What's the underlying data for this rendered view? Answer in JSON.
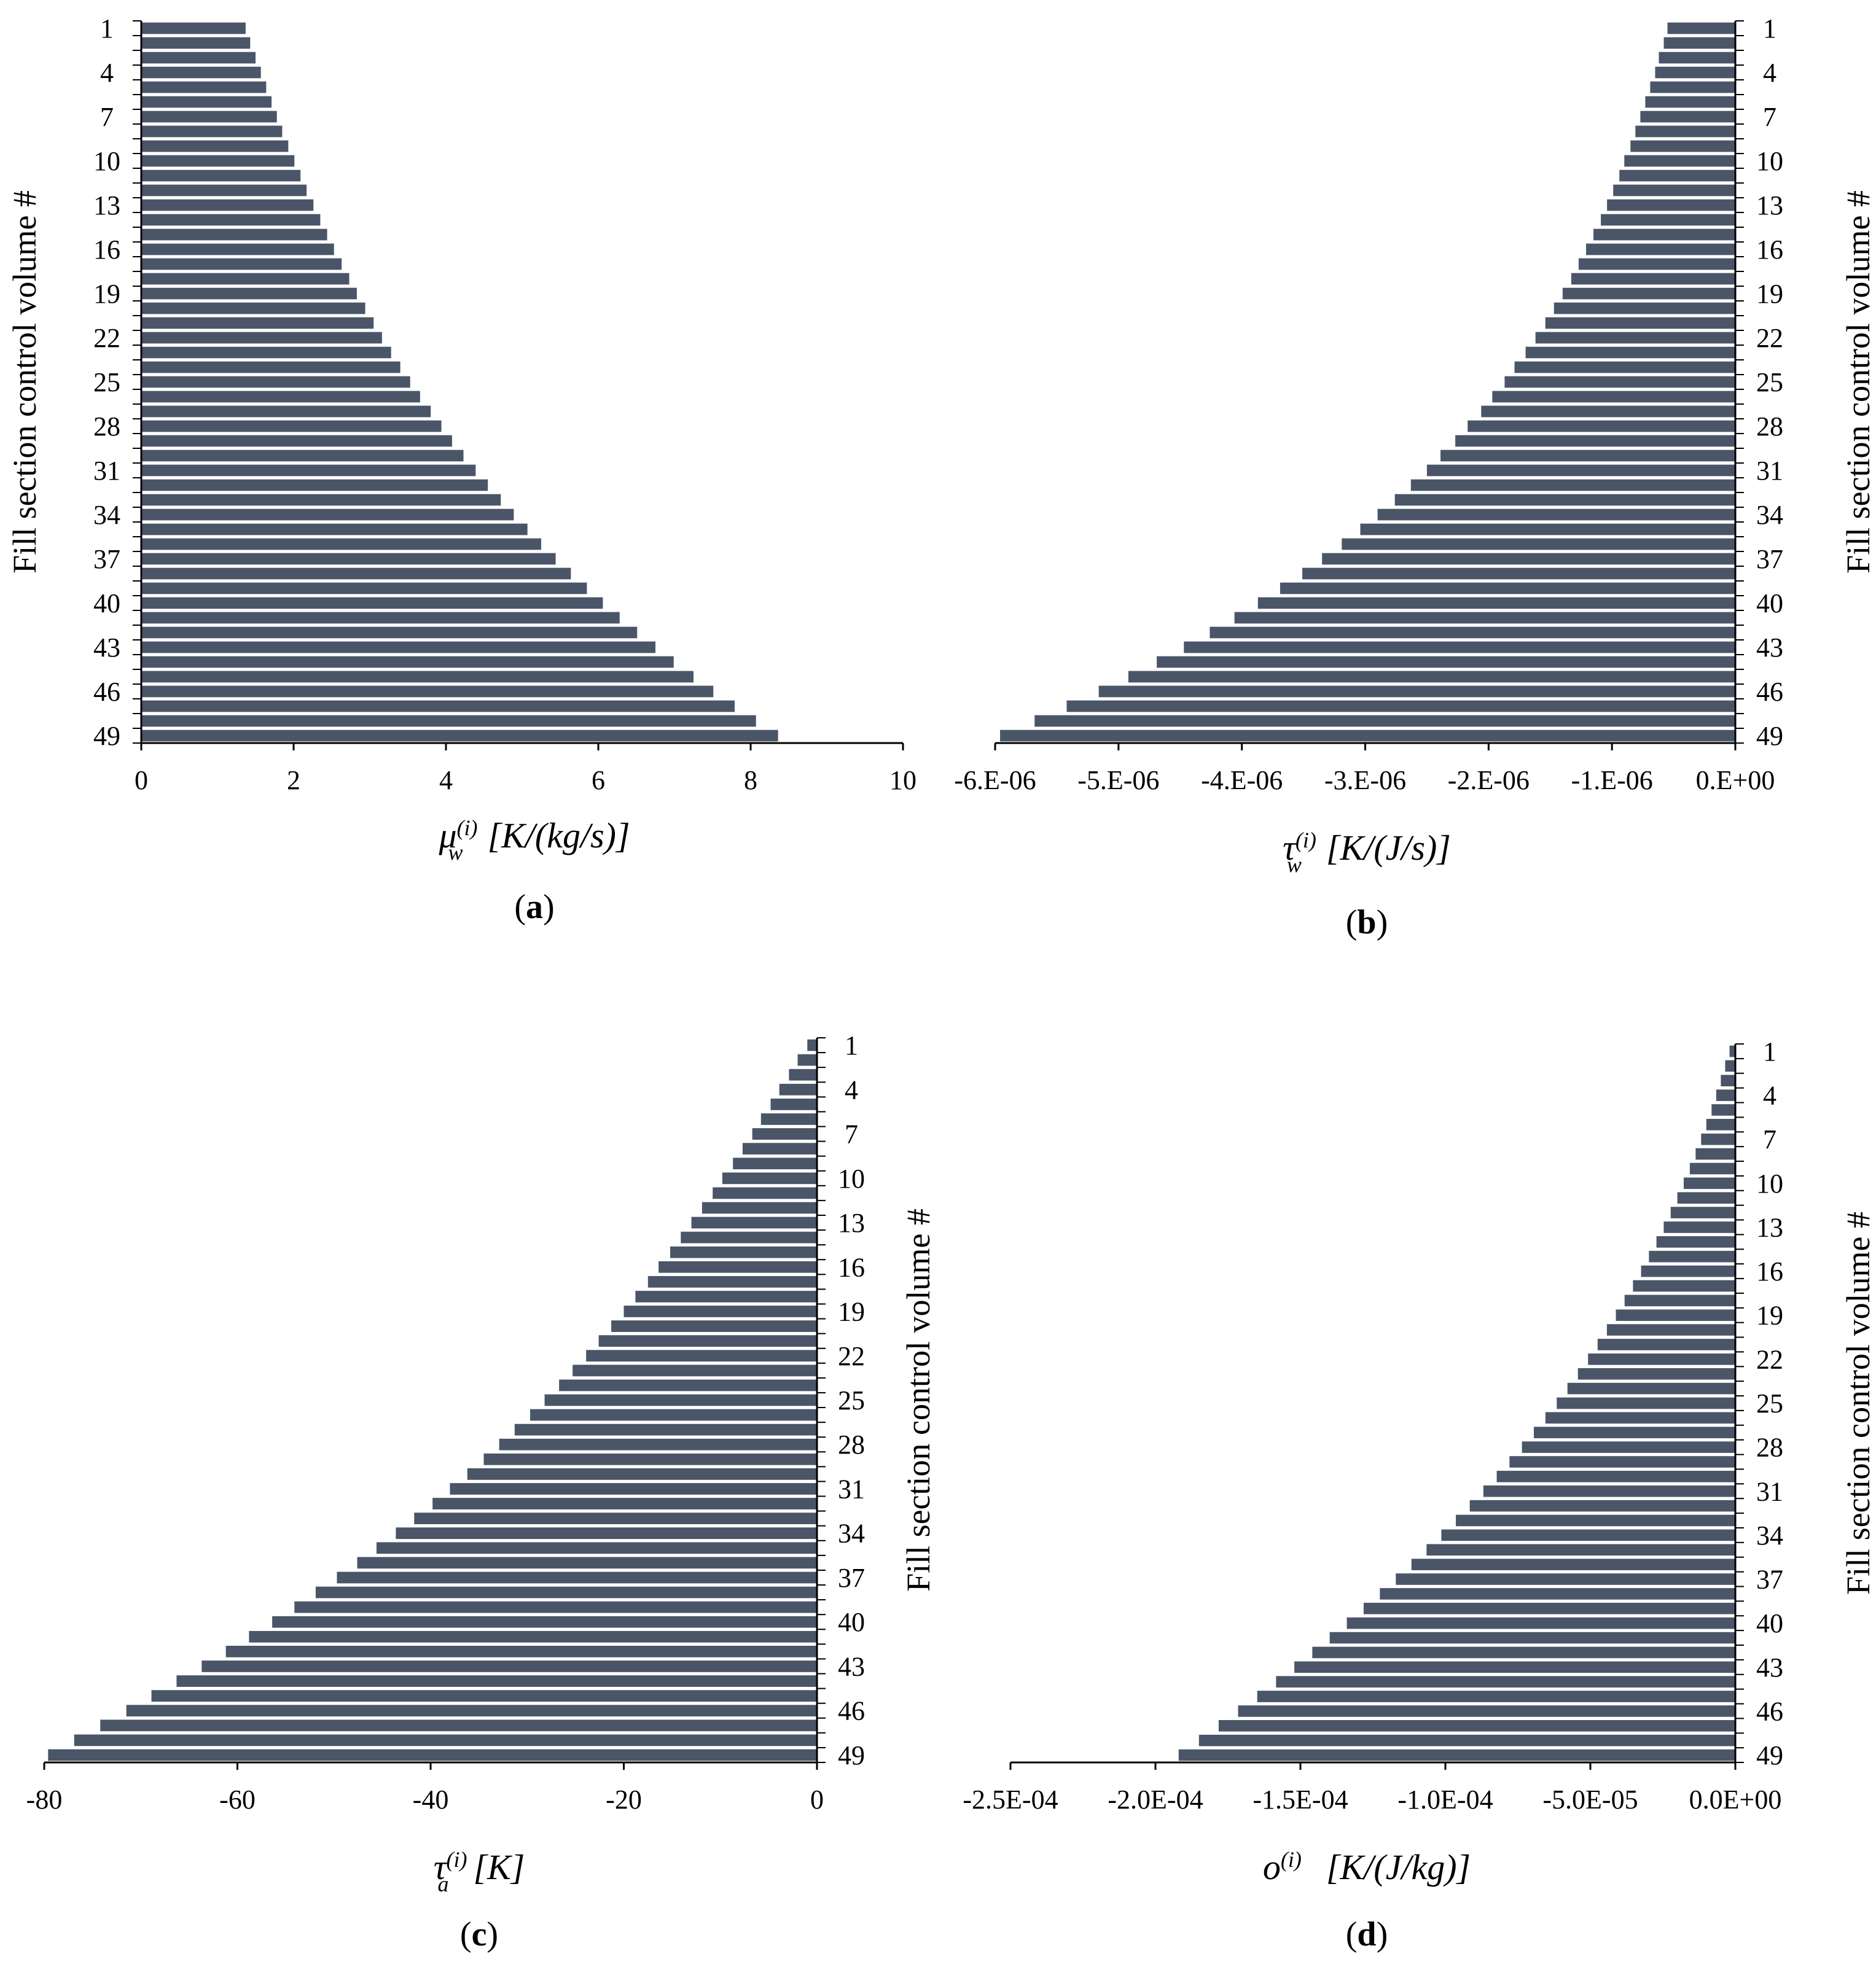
{
  "colors": {
    "bar": "#4a5568",
    "axis": "#000000",
    "background": "#ffffff"
  },
  "chart_data": [
    {
      "id": "a",
      "type": "bar",
      "orientation": "horizontal",
      "panel_label": "a",
      "xlabel": "μ_w^(i) [K/(kg/s)]",
      "ylabel": "Fill section control volume #",
      "y_axis_side": "left",
      "xlim": [
        0,
        10
      ],
      "x_ticks": [
        "0",
        "2",
        "4",
        "6",
        "8",
        "10"
      ],
      "x_tick_values": [
        0,
        2,
        4,
        6,
        8,
        10
      ],
      "y_tick_labels": [
        "1",
        "4",
        "7",
        "10",
        "13",
        "16",
        "19",
        "22",
        "25",
        "28",
        "31",
        "34",
        "37",
        "40",
        "43",
        "46",
        "49"
      ],
      "categories": [
        "1",
        "2",
        "3",
        "4",
        "5",
        "6",
        "7",
        "8",
        "9",
        "10",
        "11",
        "12",
        "13",
        "14",
        "15",
        "16",
        "17",
        "18",
        "19",
        "20",
        "21",
        "22",
        "23",
        "24",
        "25",
        "26",
        "27",
        "28",
        "29",
        "30",
        "31",
        "32",
        "33",
        "34",
        "35",
        "36",
        "37",
        "38",
        "39",
        "40",
        "41",
        "42",
        "43",
        "44",
        "45",
        "46",
        "47",
        "48",
        "49"
      ],
      "values": [
        1.37,
        1.43,
        1.5,
        1.57,
        1.64,
        1.71,
        1.78,
        1.85,
        1.93,
        2.01,
        2.09,
        2.17,
        2.26,
        2.35,
        2.44,
        2.53,
        2.63,
        2.73,
        2.83,
        2.94,
        3.05,
        3.16,
        3.28,
        3.4,
        3.53,
        3.66,
        3.8,
        3.94,
        4.08,
        4.23,
        4.39,
        4.55,
        4.72,
        4.89,
        5.07,
        5.25,
        5.44,
        5.64,
        5.85,
        6.06,
        6.28,
        6.51,
        6.75,
        6.99,
        7.25,
        7.51,
        7.79,
        8.07,
        8.36
      ]
    },
    {
      "id": "b",
      "type": "bar",
      "orientation": "horizontal",
      "panel_label": "b",
      "xlabel": "τ_w^(i) [K/(J/s)]",
      "ylabel": "Fill section control volume #",
      "y_axis_side": "right",
      "xlim": [
        -6e-06,
        0
      ],
      "x_ticks": [
        "-6.E-06",
        "-5.E-06",
        "-4.E-06",
        "-3.E-06",
        "-2.E-06",
        "-1.E-06",
        "0.E+00"
      ],
      "x_tick_values": [
        -6e-06,
        -5e-06,
        -4e-06,
        -3e-06,
        -2e-06,
        -1e-06,
        0
      ],
      "y_tick_labels": [
        "1",
        "4",
        "7",
        "10",
        "13",
        "16",
        "19",
        "22",
        "25",
        "28",
        "31",
        "34",
        "37",
        "40",
        "43",
        "46",
        "49"
      ],
      "categories": [
        "1",
        "2",
        "3",
        "4",
        "5",
        "6",
        "7",
        "8",
        "9",
        "10",
        "11",
        "12",
        "13",
        "14",
        "15",
        "16",
        "17",
        "18",
        "19",
        "20",
        "21",
        "22",
        "23",
        "24",
        "25",
        "26",
        "27",
        "28",
        "29",
        "30",
        "31",
        "32",
        "33",
        "34",
        "35",
        "36",
        "37",
        "38",
        "39",
        "40",
        "41",
        "42",
        "43",
        "44",
        "45",
        "46",
        "47",
        "48",
        "49"
      ],
      "values": [
        -5.5e-07,
        -5.8e-07,
        -6.2e-07,
        -6.5e-07,
        -6.9e-07,
        -7.3e-07,
        -7.7e-07,
        -8.1e-07,
        -8.5e-07,
        -9e-07,
        -9.4e-07,
        -9.9e-07,
        -1.04e-06,
        -1.09e-06,
        -1.15e-06,
        -1.21e-06,
        -1.27e-06,
        -1.33e-06,
        -1.4e-06,
        -1.47e-06,
        -1.54e-06,
        -1.62e-06,
        -1.7e-06,
        -1.79e-06,
        -1.87e-06,
        -1.97e-06,
        -2.06e-06,
        -2.17e-06,
        -2.27e-06,
        -2.39e-06,
        -2.5e-06,
        -2.63e-06,
        -2.76e-06,
        -2.9e-06,
        -3.04e-06,
        -3.19e-06,
        -3.35e-06,
        -3.51e-06,
        -3.69e-06,
        -3.87e-06,
        -4.06e-06,
        -4.26e-06,
        -4.47e-06,
        -4.69e-06,
        -4.92e-06,
        -5.16e-06,
        -5.42e-06,
        -5.68e-06,
        -5.96e-06
      ]
    },
    {
      "id": "c",
      "type": "bar",
      "orientation": "horizontal",
      "panel_label": "c",
      "xlabel": "τ_a^(i) [K]",
      "ylabel": "Fill section control volume #",
      "y_axis_side": "right",
      "xlim": [
        -80,
        0
      ],
      "x_ticks": [
        "-80",
        "-60",
        "-40",
        "-20",
        "0"
      ],
      "x_tick_values": [
        -80,
        -60,
        -40,
        -20,
        0
      ],
      "y_tick_labels": [
        "1",
        "4",
        "7",
        "10",
        "13",
        "16",
        "19",
        "22",
        "25",
        "28",
        "31",
        "34",
        "37",
        "40",
        "43",
        "46",
        "49"
      ],
      "categories": [
        "1",
        "2",
        "3",
        "4",
        "5",
        "6",
        "7",
        "8",
        "9",
        "10",
        "11",
        "12",
        "13",
        "14",
        "15",
        "16",
        "17",
        "18",
        "19",
        "20",
        "21",
        "22",
        "23",
        "24",
        "25",
        "26",
        "27",
        "28",
        "29",
        "30",
        "31",
        "32",
        "33",
        "34",
        "35",
        "36",
        "37",
        "38",
        "39",
        "40",
        "41",
        "42",
        "43",
        "44",
        "45",
        "46",
        "47",
        "48",
        "49"
      ],
      "values": [
        -1.0,
        -2.0,
        -2.9,
        -3.9,
        -4.8,
        -5.8,
        -6.7,
        -7.7,
        -8.7,
        -9.8,
        -10.8,
        -11.9,
        -13.0,
        -14.1,
        -15.2,
        -16.4,
        -17.5,
        -18.8,
        -20.0,
        -21.3,
        -22.6,
        -23.9,
        -25.3,
        -26.7,
        -28.2,
        -29.7,
        -31.3,
        -32.9,
        -34.5,
        -36.2,
        -38.0,
        -39.8,
        -41.7,
        -43.6,
        -45.6,
        -47.6,
        -49.7,
        -51.9,
        -54.1,
        -56.4,
        -58.8,
        -61.2,
        -63.7,
        -66.3,
        -68.9,
        -71.5,
        -74.2,
        -76.9,
        -79.6
      ]
    },
    {
      "id": "d",
      "type": "bar",
      "orientation": "horizontal",
      "panel_label": "d",
      "xlabel": "o^(i) [K/(J/kg)]",
      "ylabel": "Fill section control volume #",
      "y_axis_side": "right",
      "xlim": [
        -0.00025,
        0
      ],
      "x_ticks": [
        "-2.5E-04",
        "-2.0E-04",
        "-1.5E-04",
        "-1.0E-04",
        "-5.0E-05",
        "0.0E+00"
      ],
      "x_tick_values": [
        -0.00025,
        -0.0002,
        -0.00015,
        -0.0001,
        -5e-05,
        0
      ],
      "y_tick_labels": [
        "1",
        "4",
        "7",
        "10",
        "13",
        "16",
        "19",
        "22",
        "25",
        "28",
        "31",
        "34",
        "37",
        "40",
        "43",
        "46",
        "49"
      ],
      "categories": [
        "1",
        "2",
        "3",
        "4",
        "5",
        "6",
        "7",
        "8",
        "9",
        "10",
        "11",
        "12",
        "13",
        "14",
        "15",
        "16",
        "17",
        "18",
        "19",
        "20",
        "21",
        "22",
        "23",
        "24",
        "25",
        "26",
        "27",
        "28",
        "29",
        "30",
        "31",
        "32",
        "33",
        "34",
        "35",
        "36",
        "37",
        "38",
        "39",
        "40",
        "41",
        "42",
        "43",
        "44",
        "45",
        "46",
        "47",
        "48",
        "49"
      ],
      "values": [
        -2e-06,
        -3.5e-06,
        -5e-06,
        -6.6e-06,
        -8.2e-06,
        -1e-05,
        -1.18e-05,
        -1.37e-05,
        -1.57e-05,
        -1.78e-05,
        -2e-05,
        -2.23e-05,
        -2.47e-05,
        -2.72e-05,
        -2.98e-05,
        -3.25e-05,
        -3.53e-05,
        -3.82e-05,
        -4.12e-05,
        -4.43e-05,
        -4.75e-05,
        -5.08e-05,
        -5.43e-05,
        -5.79e-05,
        -6.16e-05,
        -6.55e-05,
        -6.95e-05,
        -7.36e-05,
        -7.79e-05,
        -8.23e-05,
        -8.69e-05,
        -9.16e-05,
        -9.64e-05,
        -0.0001014,
        -0.0001065,
        -0.0001117,
        -0.0001171,
        -0.0001226,
        -0.0001282,
        -0.000134,
        -0.0001399,
        -0.0001459,
        -0.0001521,
        -0.0001584,
        -0.0001649,
        -0.0001715,
        -0.0001782,
        -0.000185,
        -0.000192
      ]
    }
  ]
}
